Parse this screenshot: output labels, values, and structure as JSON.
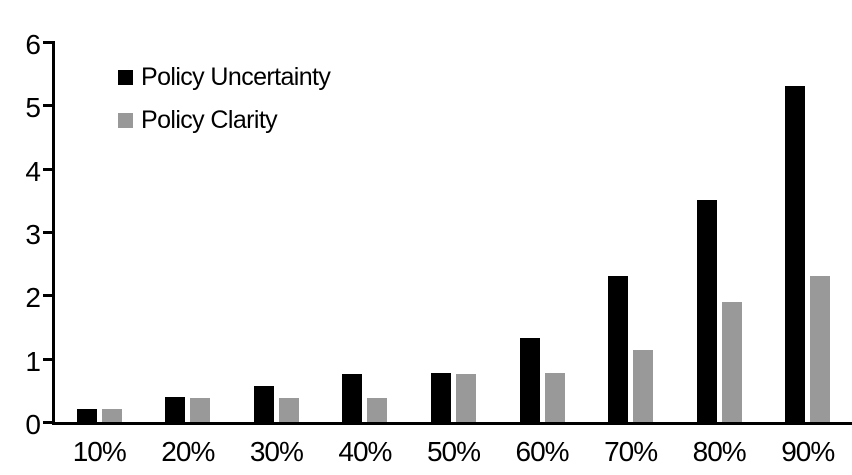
{
  "chart_data": {
    "type": "bar",
    "title": "",
    "xlabel": "",
    "ylabel": "",
    "categories": [
      "10%",
      "20%",
      "30%",
      "40%",
      "50%",
      "60%",
      "70%",
      "80%",
      "90%"
    ],
    "series": [
      {
        "name": "Policy Uncertainty",
        "color": "#000000",
        "values": [
          0.2,
          0.4,
          0.57,
          0.76,
          0.78,
          1.33,
          2.3,
          3.5,
          5.3
        ]
      },
      {
        "name": "Policy Clarity",
        "color": "#999999",
        "values": [
          0.2,
          0.38,
          0.38,
          0.38,
          0.76,
          0.77,
          1.13,
          1.9,
          2.3
        ]
      }
    ],
    "ylim": [
      0,
      6
    ],
    "yticks": [
      0,
      1,
      2,
      3,
      4,
      5,
      6
    ],
    "grid": false,
    "legend_position": "top-left",
    "axis_color": "#000000",
    "background_color": "#ffffff"
  }
}
